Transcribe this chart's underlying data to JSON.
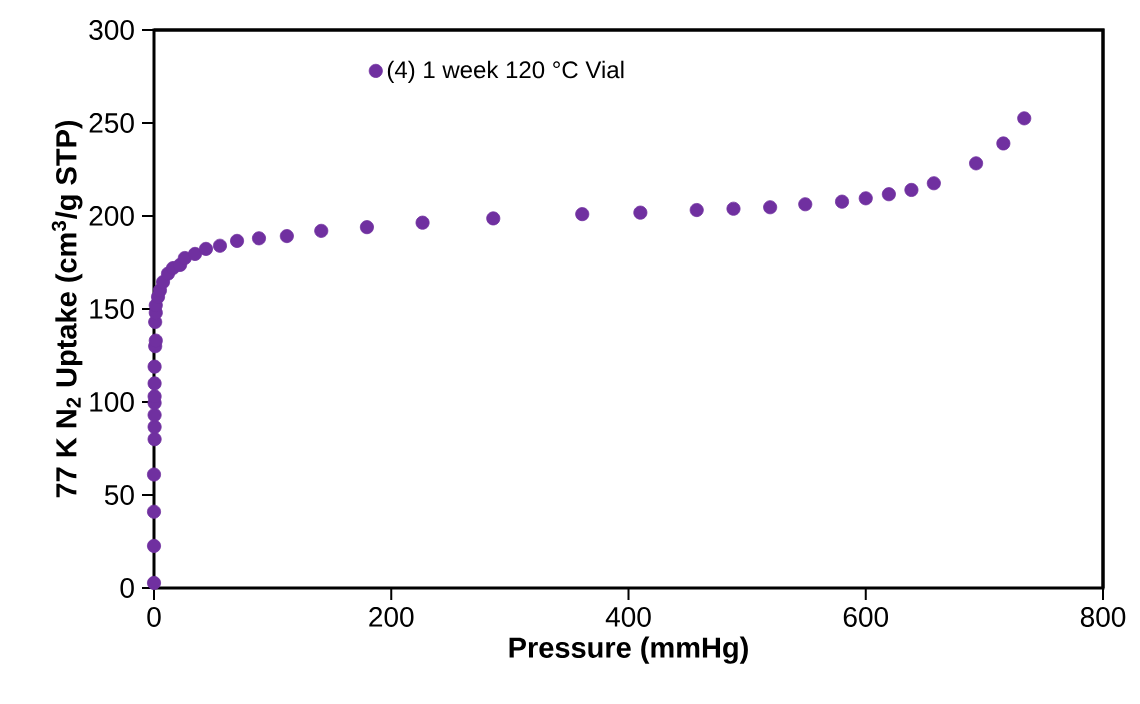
{
  "chart_data": {
    "type": "scatter",
    "xlabel": "Pressure (mmHg)",
    "ylabel": "77 K N$_{2}$ Uptake (cm$^{3}$/g STP)",
    "xlim": [
      0,
      800
    ],
    "ylim": [
      0,
      300
    ],
    "xticks": [
      0,
      200,
      400,
      600,
      800
    ],
    "yticks": [
      0,
      50,
      100,
      150,
      200,
      250,
      300
    ],
    "legend": "top left",
    "marker": "circle",
    "series": [
      {
        "name": "(4) 1 week 120 °C Vial",
        "color": "#7030a0",
        "x": [
          0,
          0,
          0,
          0,
          0.5,
          0.5,
          0.5,
          0.5,
          0.5,
          0.5,
          0.5,
          1,
          1.5,
          1,
          1.5,
          1.5,
          3.4,
          5,
          7.6,
          11.8,
          16,
          22,
          26,
          34.6,
          43.8,
          55.6,
          70,
          88.5,
          112,
          141,
          179.5,
          226.4,
          286,
          361,
          410,
          457.5,
          488.5,
          519.4,
          549,
          580,
          600,
          619.5,
          638.5,
          657.4,
          693,
          716,
          733.6
        ],
        "values": [
          2.7,
          22.6,
          41,
          61,
          80,
          86.6,
          93,
          99.5,
          103,
          110,
          119,
          130,
          133,
          143,
          148,
          152,
          156.5,
          160,
          164.5,
          169,
          172,
          173.7,
          177.4,
          179.6,
          182.3,
          184,
          186.6,
          188,
          189.2,
          192,
          194,
          196.4,
          198.7,
          201,
          201.8,
          203.2,
          203.9,
          204.7,
          206.3,
          207.7,
          209.5,
          211.7,
          214,
          217.6,
          228.3,
          239,
          252.5
        ]
      }
    ]
  }
}
